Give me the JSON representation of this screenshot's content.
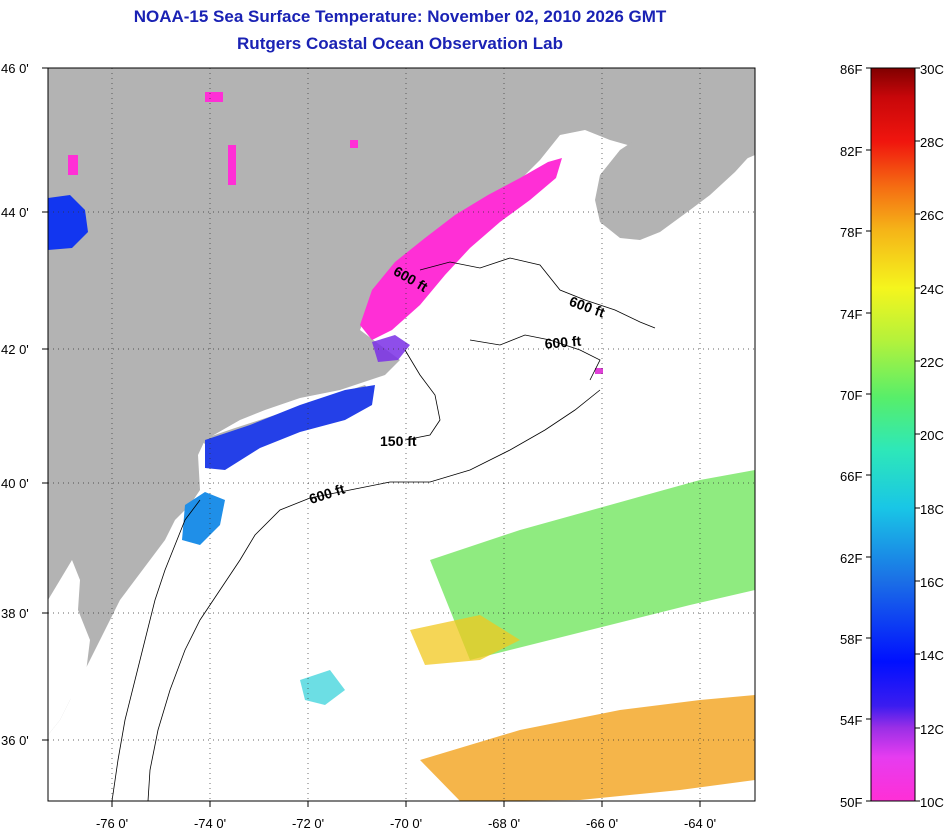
{
  "header": {
    "title_line1": "NOAA-15 Sea Surface Temperature:  November 02, 2010 2026 GMT",
    "title_line2": "Rutgers Coastal Ocean Observation Lab"
  },
  "map": {
    "lat_labels": [
      "46 0'",
      "44 0'",
      "42 0'",
      "40 0'",
      "38 0'",
      "36 0'"
    ],
    "lon_labels": [
      "-76 0'",
      "-74 0'",
      "-72 0'",
      "-70 0'",
      "-68 0'",
      "-66 0'",
      "-64 0'"
    ],
    "contour_labels": [
      "600 ft",
      "600 ft",
      "600 ft",
      "150 ft",
      "600 ft"
    ],
    "colors": {
      "land": "#b3b3b3",
      "water": "#ffffff"
    }
  },
  "colorbar": {
    "fahrenheit_labels": [
      "86F",
      "82F",
      "78F",
      "74F",
      "70F",
      "66F",
      "62F",
      "58F",
      "54F",
      "50F"
    ],
    "celsius_labels": [
      "30C",
      "28C",
      "26C",
      "24C",
      "22C",
      "20C",
      "18C",
      "16C",
      "14C",
      "12C",
      "10C"
    ]
  }
}
